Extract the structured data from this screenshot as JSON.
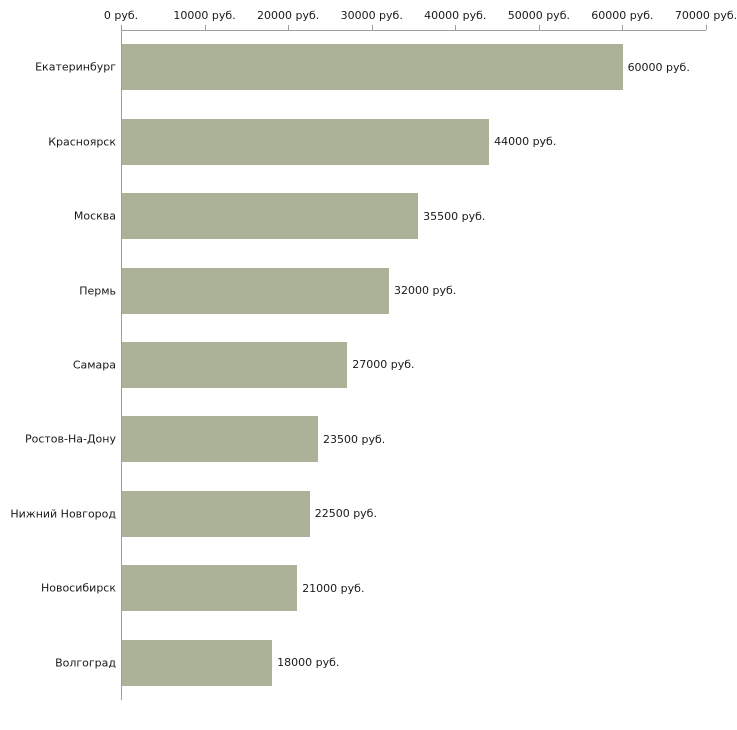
{
  "chart_data": {
    "type": "bar",
    "orientation": "horizontal",
    "title": "",
    "categories": [
      "Екатеринбург",
      "Красноярск",
      "Москва",
      "Пермь",
      "Самара",
      "Ростов-На-Дону",
      "Нижний Новгород",
      "Новосибирск",
      "Волгоград"
    ],
    "values": [
      60000,
      44000,
      35500,
      32000,
      27000,
      23500,
      22500,
      21000,
      18000
    ],
    "value_labels": [
      "60000 руб.",
      "44000 руб.",
      "35500 руб.",
      "32000 руб.",
      "27000 руб.",
      "23500 руб.",
      "22500 руб.",
      "21000 руб.",
      "18000 руб."
    ],
    "x_ticks": [
      0,
      10000,
      20000,
      30000,
      40000,
      50000,
      60000,
      70000
    ],
    "x_tick_labels": [
      "0 руб.",
      "10000 руб.",
      "20000 руб.",
      "30000 руб.",
      "40000 руб.",
      "50000 руб.",
      "60000 руб.",
      "70000 руб."
    ],
    "xlim": [
      0,
      70000
    ],
    "tick_position": "top",
    "grid": false,
    "legend": "none",
    "bar_color": "#acb297",
    "axis_color": "#9e9e9e",
    "text_color": "#1a1a1a",
    "background_color": "#ffffff"
  }
}
